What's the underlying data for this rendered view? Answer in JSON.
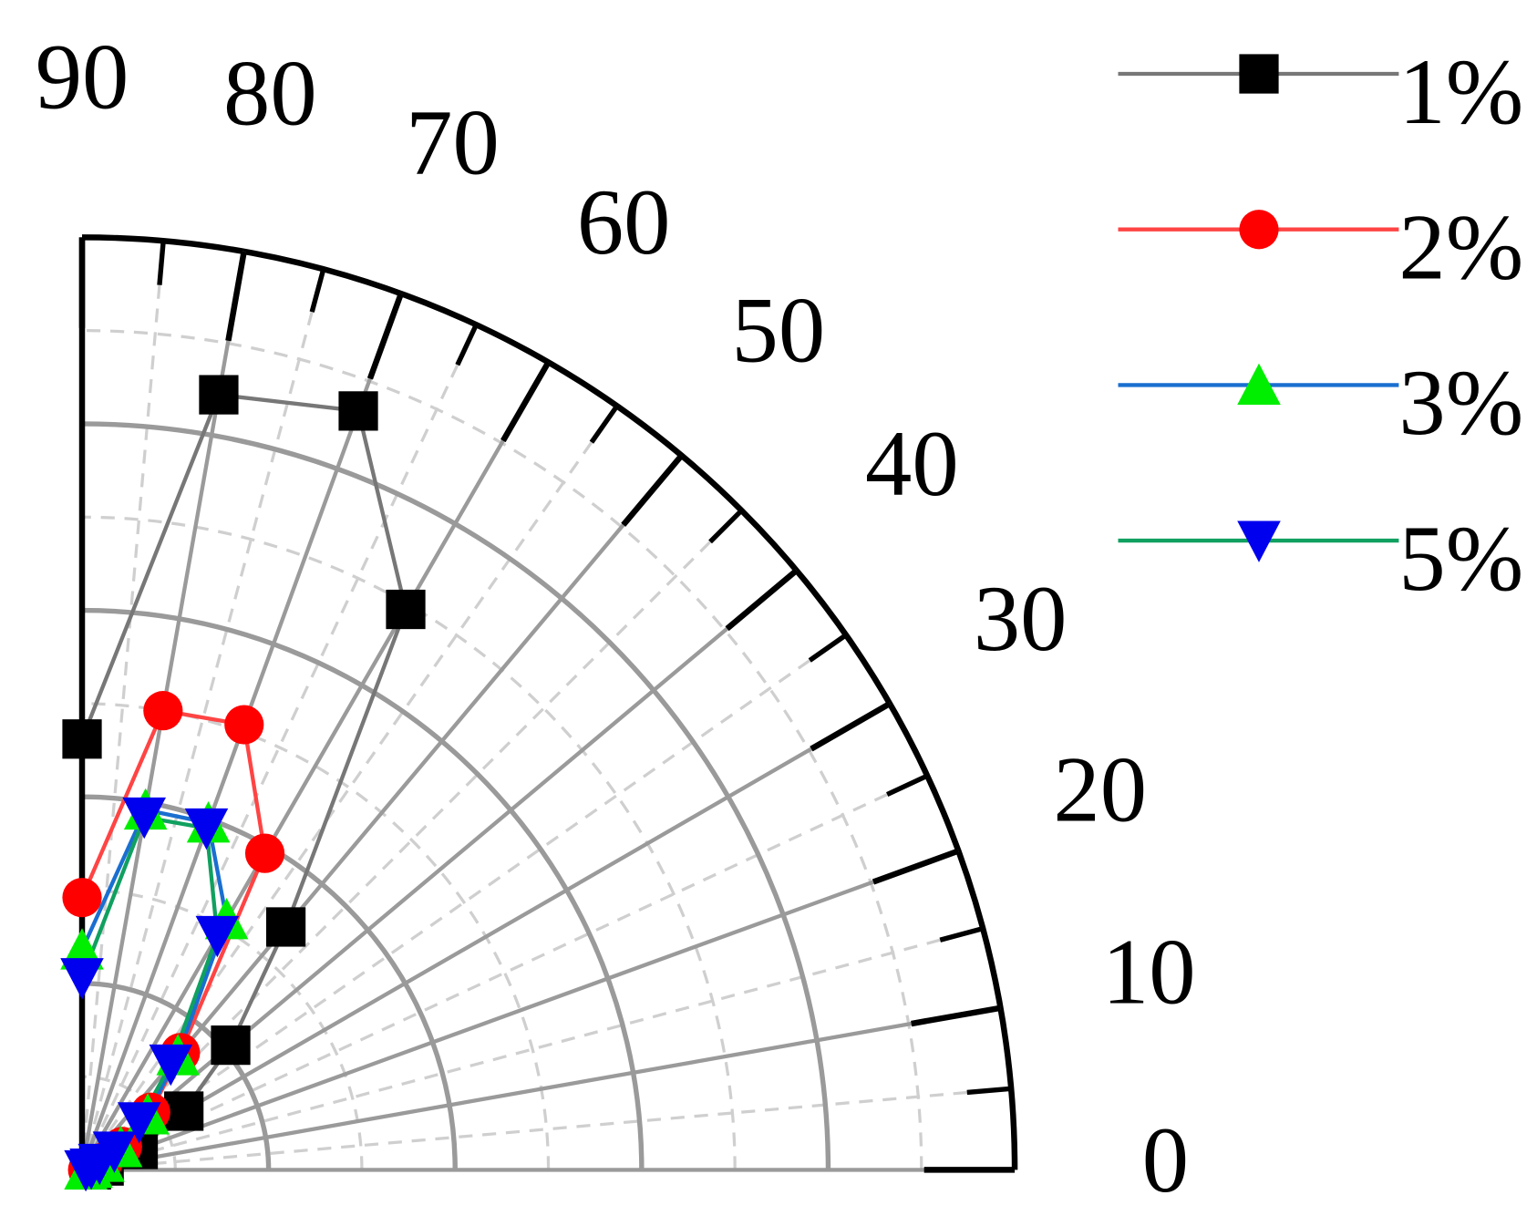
{
  "chart_data": {
    "type": "polar",
    "x": [
      0,
      10,
      20,
      30,
      40,
      50,
      60,
      70,
      80,
      90
    ],
    "xlim": [
      0,
      90
    ],
    "xticks": [
      0,
      10,
      20,
      30,
      40,
      50,
      60,
      70,
      80,
      90
    ],
    "rlim": [
      0,
      5
    ],
    "rgrid": [
      1,
      2,
      3,
      4,
      5
    ],
    "series": [
      {
        "name": "1%",
        "color": "#777777",
        "marker_color": "#000000",
        "marker": "square",
        "values": [
          0.05,
          0.12,
          0.32,
          0.63,
          1.04,
          1.7,
          3.47,
          4.33,
          4.22,
          2.31
        ]
      },
      {
        "name": "2%",
        "color": "#ff4444",
        "marker_color": "#ff0000",
        "marker": "circle",
        "values": [
          0.03,
          0.06,
          0.12,
          0.25,
          0.48,
          0.82,
          1.96,
          2.54,
          2.5,
          1.46
        ]
      },
      {
        "name": "3%",
        "color": "#1a6fd0",
        "marker_color": "#00ee00",
        "marker": "triangle-up",
        "values": [
          0.02,
          0.05,
          0.12,
          0.24,
          0.46,
          0.8,
          1.55,
          1.98,
          1.96,
          1.18
        ]
      },
      {
        "name": "5%",
        "color": "#10a060",
        "marker_color": "#0000ee",
        "marker": "triangle-down",
        "values": [
          0.02,
          0.05,
          0.1,
          0.2,
          0.4,
          0.74,
          1.45,
          1.95,
          1.92,
          1.03
        ]
      }
    ]
  }
}
